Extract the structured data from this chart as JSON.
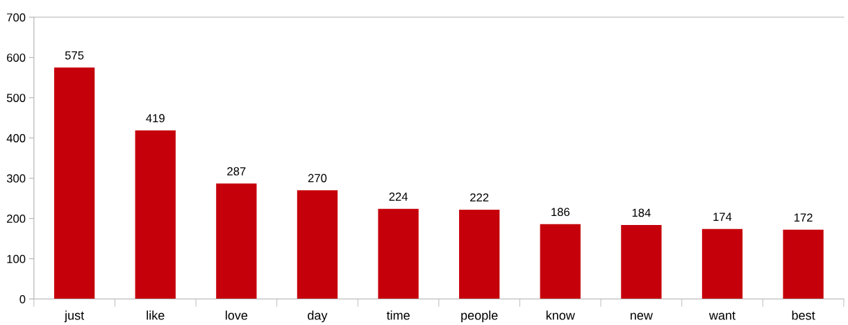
{
  "chart_data": {
    "type": "bar",
    "categories": [
      "just",
      "like",
      "love",
      "day",
      "time",
      "people",
      "know",
      "new",
      "want",
      "best"
    ],
    "values": [
      575,
      419,
      287,
      270,
      224,
      222,
      186,
      184,
      174,
      172
    ],
    "color": "#c5000b",
    "ylim": [
      0,
      700
    ],
    "yticks": [
      0,
      100,
      200,
      300,
      400,
      500,
      600,
      700
    ],
    "data_labels": true,
    "grid": false,
    "legend": false
  }
}
